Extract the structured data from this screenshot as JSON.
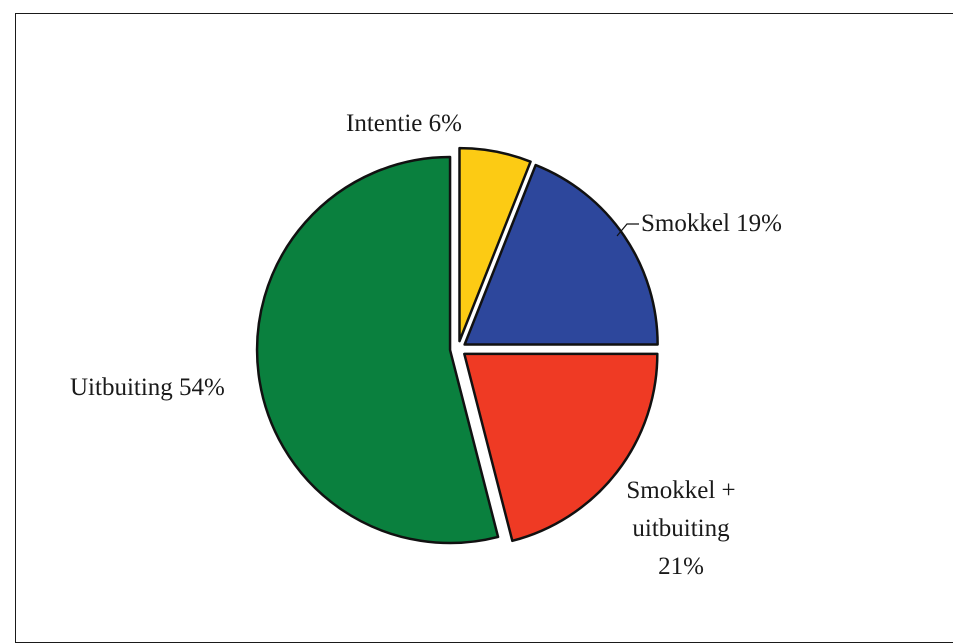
{
  "chart_data": {
    "type": "pie",
    "title": "",
    "start_angle_deg": -90,
    "direction": "clockwise",
    "exploded": true,
    "slices": [
      {
        "label_lines": [
          "Intentie 6%"
        ],
        "value": 6,
        "color": "#FCCB14"
      },
      {
        "label_lines": [
          "Smokkel 19%"
        ],
        "value": 19,
        "color": "#2D479C"
      },
      {
        "label_lines": [
          "Smokkel +",
          "uitbuiting",
          "21%"
        ],
        "value": 21,
        "color": "#EF3A24"
      },
      {
        "label_lines": [
          "Uitbuiting 54%"
        ],
        "value": 54,
        "color": "#0A803E"
      }
    ]
  }
}
